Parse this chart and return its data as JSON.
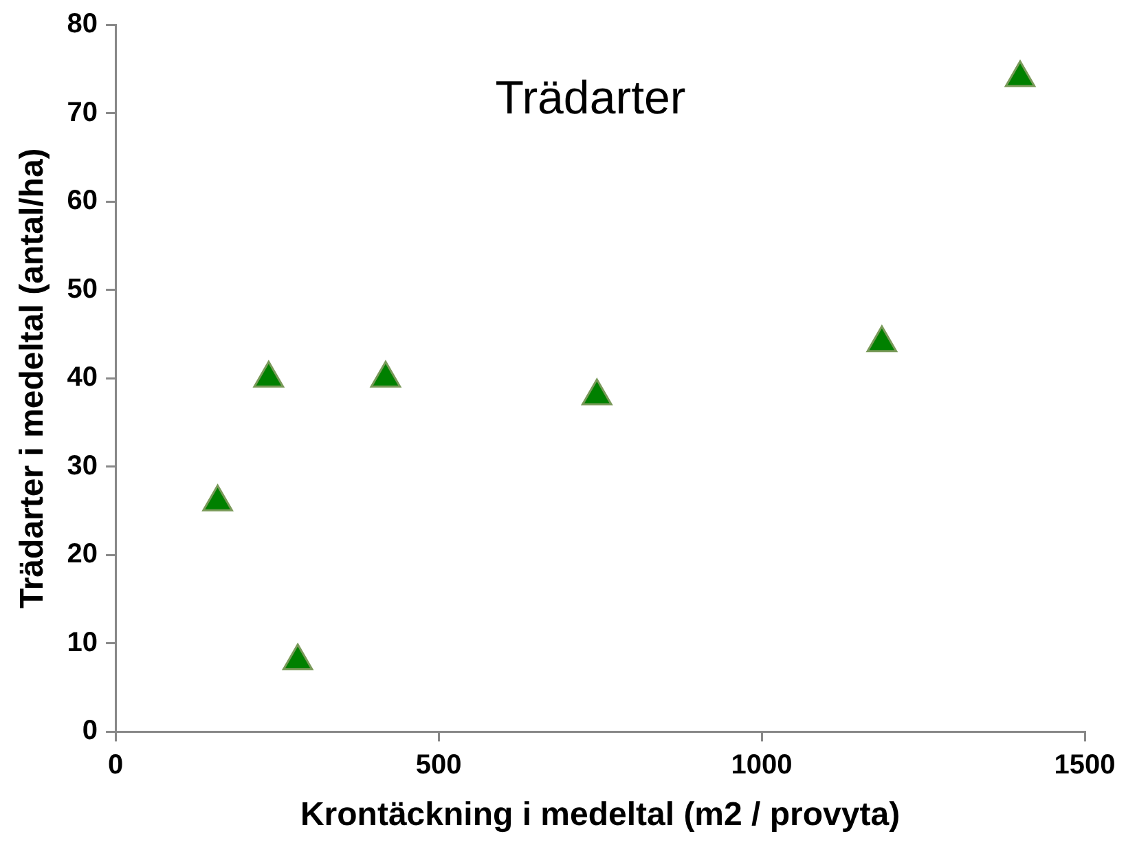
{
  "chart_data": {
    "type": "scatter",
    "title": "Trädarter",
    "xlabel": "Krontäckning i medeltal (m2 / provyta)",
    "ylabel": "Trädarter i medeltal (antal/ha)",
    "series": [
      {
        "color": "#008000",
        "x": [
          158,
          237,
          282,
          418,
          745,
          1186,
          1400
        ],
        "values": [
          26,
          40,
          8,
          40,
          38,
          44,
          74
        ]
      }
    ],
    "xlim": [
      0,
      1500
    ],
    "xticks": [
      0,
      500,
      1000,
      1500
    ],
    "ylim": [
      0,
      80
    ],
    "yticks": [
      0,
      10,
      20,
      30,
      40,
      50,
      60,
      70,
      80
    ],
    "marker": "triangle",
    "grid": false,
    "legend": false
  }
}
